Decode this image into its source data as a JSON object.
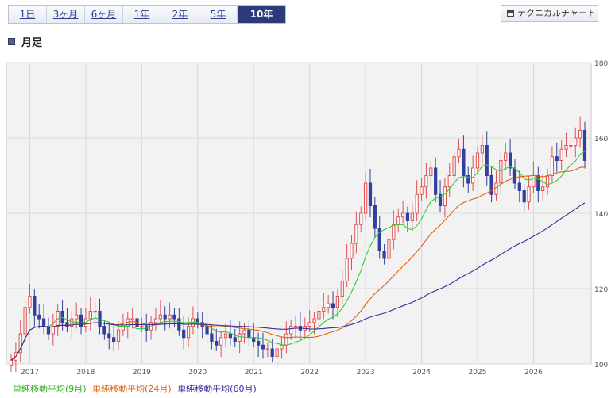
{
  "tabs": [
    {
      "label": "1日",
      "active": false
    },
    {
      "label": "3ヶ月",
      "active": false
    },
    {
      "label": "6ヶ月",
      "active": false
    },
    {
      "label": "1年",
      "active": false
    },
    {
      "label": "2年",
      "active": false
    },
    {
      "label": "5年",
      "active": false
    },
    {
      "label": "10年",
      "active": true
    }
  ],
  "technical_button": {
    "label": "テクニカルチャート",
    "icon": "chart-window-icon"
  },
  "section": {
    "title": "月足",
    "icon": "square-bullet-icon"
  },
  "colors": {
    "up": "#e05050",
    "down": "#333f9e",
    "ma9": "#33cc33",
    "ma24": "#e06010",
    "ma60": "#3a2a9a",
    "grid": "#d9d9d9",
    "plot_bg": "#f2f2f2"
  },
  "chart_data": {
    "type": "candlestick",
    "x_ticks": [
      "2017",
      "2018",
      "2019",
      "2020",
      "2021",
      "2022",
      "2023",
      "2024",
      "2025",
      "2026"
    ],
    "y_ticks": [
      100,
      120,
      140,
      160,
      180
    ],
    "ylim": [
      100,
      180
    ],
    "y_axis_position": "right",
    "grid": true,
    "legend_position": "bottom",
    "legend": [
      {
        "label": "単純移動平均(9月)",
        "color": "#33cc33"
      },
      {
        "label": "単純移動平均(24月)",
        "color": "#e06010"
      },
      {
        "label": "単純移動平均(60月)",
        "color": "#3a2a9a"
      }
    ],
    "monthly_close": [
      101,
      103,
      108,
      115,
      118,
      113,
      112,
      110,
      108,
      110,
      114,
      111,
      110,
      112,
      113,
      110,
      112,
      114,
      114,
      110,
      108,
      107,
      106,
      109,
      110,
      112,
      112,
      110,
      110,
      109,
      111,
      112,
      113,
      112,
      113,
      112,
      109,
      107,
      110,
      112,
      111,
      110,
      108,
      106,
      105,
      107,
      108,
      107,
      106,
      108,
      109,
      107,
      106,
      105,
      104,
      104,
      102,
      104,
      105,
      108,
      110,
      110,
      109,
      110,
      111,
      112,
      114,
      115,
      116,
      115,
      118,
      122,
      128,
      132,
      137,
      140,
      148,
      142,
      136,
      130,
      128,
      133,
      137,
      139,
      140,
      138,
      140,
      145,
      147,
      150,
      152,
      145,
      142,
      147,
      150,
      155,
      157,
      150,
      148,
      152,
      156,
      158,
      150,
      145,
      148,
      154,
      156,
      152,
      148,
      146,
      143,
      147,
      150,
      146,
      147,
      150,
      155,
      154,
      157,
      158,
      158,
      160,
      162,
      154
    ]
  }
}
